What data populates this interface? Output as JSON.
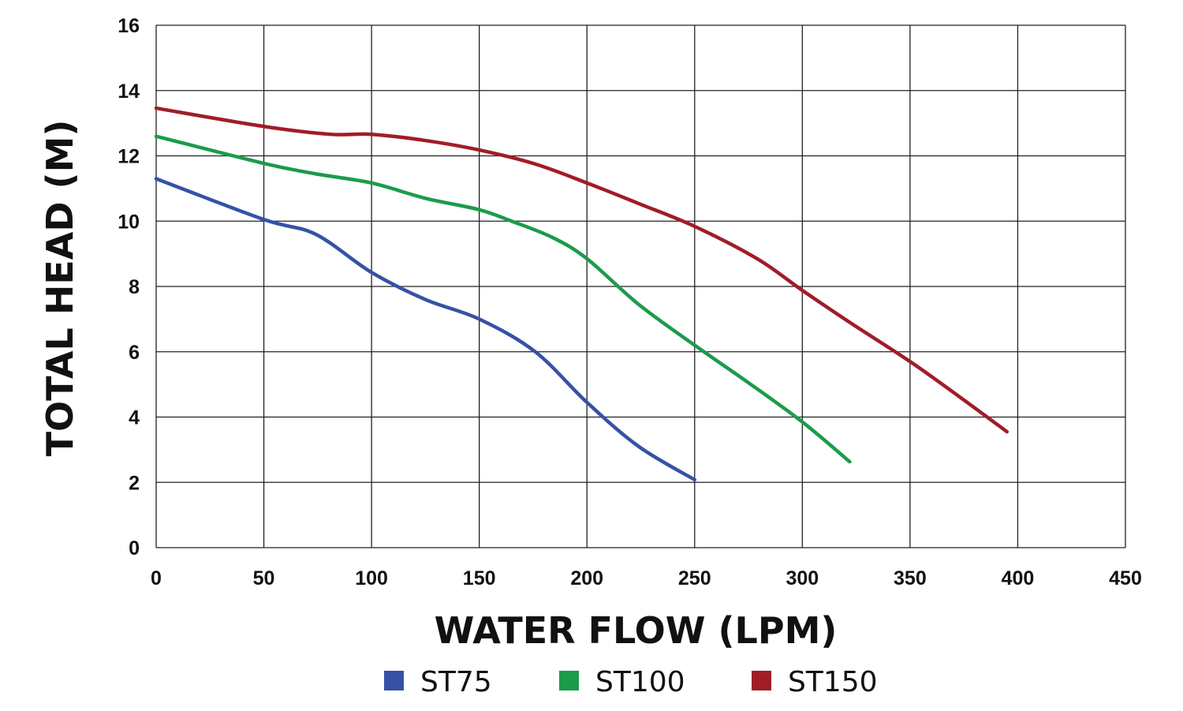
{
  "chart_data": {
    "type": "line",
    "title": "",
    "xlabel": "WATER FLOW (LPM)",
    "ylabel": "TOTAL HEAD (M)",
    "xlim": [
      0,
      450
    ],
    "ylim": [
      0,
      16
    ],
    "xticks": [
      0,
      50,
      100,
      150,
      200,
      250,
      300,
      350,
      400,
      450
    ],
    "yticks": [
      0,
      2,
      4,
      6,
      8,
      10,
      12,
      14,
      16
    ],
    "grid": true,
    "legend_position": "bottom",
    "series": [
      {
        "name": "ST75",
        "color": "#3552a6",
        "x": [
          0,
          50,
          74,
          100,
          125,
          150,
          176,
          200,
          224,
          250
        ],
        "y": [
          11.3,
          10.05,
          9.6,
          8.43,
          7.6,
          7.0,
          6.0,
          4.45,
          3.1,
          2.08
        ]
      },
      {
        "name": "ST100",
        "color": "#1c9b4a",
        "x": [
          0,
          50,
          74,
          100,
          125,
          150,
          165,
          184,
          200,
          224,
          250,
          275,
          300,
          322
        ],
        "y": [
          12.6,
          11.77,
          11.45,
          11.17,
          10.7,
          10.35,
          10.0,
          9.5,
          8.85,
          7.45,
          6.2,
          5.05,
          3.85,
          2.63
        ]
      },
      {
        "name": "ST150",
        "color": "#a01d26",
        "x": [
          0,
          50,
          81,
          100,
          125,
          150,
          176,
          200,
          224,
          250,
          279,
          300,
          322,
          350,
          374,
          395
        ],
        "y": [
          13.46,
          12.9,
          12.66,
          12.66,
          12.47,
          12.18,
          11.75,
          11.17,
          10.54,
          9.84,
          8.85,
          7.88,
          6.9,
          5.7,
          4.57,
          3.55
        ]
      }
    ]
  }
}
